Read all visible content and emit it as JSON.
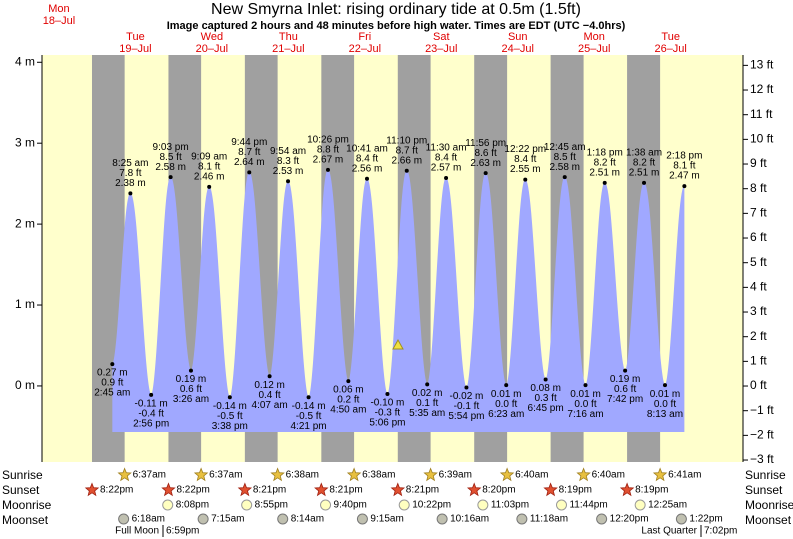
{
  "chart_data": {
    "type": "tide",
    "title": "New Smyrna Inlet: rising  ordinary tide at 0.5m (1.5ft)",
    "subtitle": "Image captured 2 hours and 48 minutes before high water. Times are EDT (UTC −4.0hrs)",
    "ylim": [
      -0.94,
      4.09
    ],
    "yticks": [
      {
        "value": 4,
        "label": "4 m"
      },
      {
        "value": 3,
        "label": "3 m"
      },
      {
        "value": 2,
        "label": "2 m"
      },
      {
        "value": 1,
        "label": "1 m"
      },
      {
        "value": 0,
        "label": "0 m"
      }
    ],
    "y2lim": [
      -3.08,
      13.42
    ],
    "y2ticks": [
      {
        "value": 13,
        "label": "13 ft"
      },
      {
        "value": 12,
        "label": "12 ft"
      },
      {
        "value": 11,
        "label": "11 ft"
      },
      {
        "value": 10,
        "label": "10 ft"
      },
      {
        "value": 9,
        "label": "9 ft"
      },
      {
        "value": 8,
        "label": "8 ft"
      },
      {
        "value": 7,
        "label": "7 ft"
      },
      {
        "value": 6,
        "label": "6 ft"
      },
      {
        "value": 5,
        "label": "5 ft"
      },
      {
        "value": 4,
        "label": "4 ft"
      },
      {
        "value": 3,
        "label": "3 ft"
      },
      {
        "value": 2,
        "label": "2 ft"
      },
      {
        "value": 1,
        "label": "1 ft"
      },
      {
        "value": 0,
        "label": "0 ft"
      },
      {
        "value": -1,
        "label": "−1 ft"
      },
      {
        "value": -2,
        "label": "−2 ft"
      },
      {
        "value": -3,
        "label": "−3 ft"
      }
    ],
    "color": "#a0a8ff",
    "row_labels": {
      "sunrise": "Sunrise",
      "sunset": "Sunset",
      "moonrise": "Moonrise",
      "moonset": "Moonset"
    },
    "moon_phases": [
      {
        "name": "Full Moon",
        "time": "6:59pm"
      },
      {
        "name": "Last Quarter",
        "time": "7:02pm"
      }
    ],
    "days": [
      {
        "name": "Mon",
        "date": "18–Jul",
        "sunrise": null,
        "sunset": "8:22pm",
        "moonrise": null,
        "moonset": null,
        "tides": []
      },
      {
        "name": "Tue",
        "date": "19–Jul",
        "sunrise": "6:37am",
        "sunset": "8:22pm",
        "moonrise": "8:08pm",
        "moonset": "6:18am",
        "tides": [
          {
            "time": "2:45 am",
            "m": 0.27,
            "m_label": "0.27 m",
            "ft": 0.9,
            "ft_label": "0.9 ft"
          },
          {
            "time": "8:25 am",
            "m": 2.38,
            "m_label": "2.38 m",
            "ft": 7.8,
            "ft_label": "7.8 ft"
          },
          {
            "time": "2:56 pm",
            "m": -0.11,
            "m_label": "-0.11 m",
            "ft": -0.4,
            "ft_label": "-0.4 ft"
          },
          {
            "time": "9:03 pm",
            "m": 2.58,
            "m_label": "2.58 m",
            "ft": 8.5,
            "ft_label": "8.5 ft"
          }
        ]
      },
      {
        "name": "Wed",
        "date": "20–Jul",
        "sunrise": "6:37am",
        "sunset": "8:21pm",
        "moonrise": "8:55pm",
        "moonset": "7:15am",
        "tides": [
          {
            "time": "3:26 am",
            "m": 0.19,
            "m_label": "0.19 m",
            "ft": 0.6,
            "ft_label": "0.6 ft"
          },
          {
            "time": "9:09 am",
            "m": 2.46,
            "m_label": "2.46 m",
            "ft": 8.1,
            "ft_label": "8.1 ft"
          },
          {
            "time": "3:38 pm",
            "m": -0.14,
            "m_label": "-0.14 m",
            "ft": -0.5,
            "ft_label": "-0.5 ft"
          },
          {
            "time": "9:44 pm",
            "m": 2.64,
            "m_label": "2.64 m",
            "ft": 8.7,
            "ft_label": "8.7 ft"
          }
        ]
      },
      {
        "name": "Thu",
        "date": "21–Jul",
        "sunrise": "6:38am",
        "sunset": "8:21pm",
        "moonrise": "9:40pm",
        "moonset": "8:14am",
        "tides": [
          {
            "time": "4:07 am",
            "m": 0.12,
            "m_label": "0.12 m",
            "ft": 0.4,
            "ft_label": "0.4 ft"
          },
          {
            "time": "9:54 am",
            "m": 2.53,
            "m_label": "2.53 m",
            "ft": 8.3,
            "ft_label": "8.3 ft"
          },
          {
            "time": "4:21 pm",
            "m": -0.14,
            "m_label": "-0.14 m",
            "ft": -0.5,
            "ft_label": "-0.5 ft"
          },
          {
            "time": "10:26 pm",
            "m": 2.67,
            "m_label": "2.67 m",
            "ft": 8.8,
            "ft_label": "8.8 ft"
          }
        ]
      },
      {
        "name": "Fri",
        "date": "22–Jul",
        "sunrise": "6:38am",
        "sunset": "8:21pm",
        "moonrise": "10:22pm",
        "moonset": "9:15am",
        "tides": [
          {
            "time": "4:50 am",
            "m": 0.06,
            "m_label": "0.06 m",
            "ft": 0.2,
            "ft_label": "0.2 ft"
          },
          {
            "time": "10:41 am",
            "m": 2.56,
            "m_label": "2.56 m",
            "ft": 8.4,
            "ft_label": "8.4 ft"
          },
          {
            "time": "5:06 pm",
            "m": -0.1,
            "m_label": "-0.10 m",
            "ft": -0.3,
            "ft_label": "-0.3 ft"
          },
          {
            "time": "11:10 pm",
            "m": 2.66,
            "m_label": "2.66 m",
            "ft": 8.7,
            "ft_label": "8.7 ft"
          }
        ]
      },
      {
        "name": "Sat",
        "date": "23–Jul",
        "sunrise": "6:39am",
        "sunset": "8:20pm",
        "moonrise": "11:03pm",
        "moonset": "10:16am",
        "tides": [
          {
            "time": "5:35 am",
            "m": 0.02,
            "m_label": "0.02 m",
            "ft": 0.1,
            "ft_label": "0.1 ft"
          },
          {
            "time": "11:30 am",
            "m": 2.57,
            "m_label": "2.57 m",
            "ft": 8.4,
            "ft_label": "8.4 ft"
          },
          {
            "time": "5:54 pm",
            "m": -0.02,
            "m_label": "-0.02 m",
            "ft": -0.1,
            "ft_label": "-0.1 ft"
          },
          {
            "time": "11:56 pm",
            "m": 2.63,
            "m_label": "2.63 m",
            "ft": 8.6,
            "ft_label": "8.6 ft"
          }
        ]
      },
      {
        "name": "Sun",
        "date": "24–Jul",
        "sunrise": "6:40am",
        "sunset": "8:19pm",
        "moonrise": "11:44pm",
        "moonset": "11:18am",
        "tides": [
          {
            "time": "6:23 am",
            "m": 0.01,
            "m_label": "0.01 m",
            "ft": 0,
            "ft_label": "0.0 ft"
          },
          {
            "time": "12:22 pm",
            "m": 2.55,
            "m_label": "2.55 m",
            "ft": 8.4,
            "ft_label": "8.4 ft"
          },
          {
            "time": "6:45 pm",
            "m": 0.08,
            "m_label": "0.08 m",
            "ft": 0.3,
            "ft_label": "0.3 ft"
          }
        ]
      },
      {
        "name": "Mon",
        "date": "25–Jul",
        "sunrise": "6:40am",
        "sunset": "8:19pm",
        "moonrise": null,
        "moonset": "12:20pm",
        "tides": [
          {
            "time": "12:45 am",
            "m": 2.58,
            "m_label": "2.58 m",
            "ft": 8.5,
            "ft_label": "8.5 ft"
          },
          {
            "time": "7:16 am",
            "m": 0.01,
            "m_label": "0.01 m",
            "ft": 0,
            "ft_label": "0.0 ft"
          },
          {
            "time": "1:18 pm",
            "m": 2.51,
            "m_label": "2.51 m",
            "ft": 8.2,
            "ft_label": "8.2 ft"
          },
          {
            "time": "7:42 pm",
            "m": 0.19,
            "m_label": "0.19 m",
            "ft": 0.6,
            "ft_label": "0.6 ft"
          }
        ]
      },
      {
        "name": "Tue",
        "date": "26–Jul",
        "sunrise": "6:41am",
        "sunset": null,
        "moonrise": "12:25am",
        "moonset": "1:22pm",
        "tides": [
          {
            "time": "1:38 am",
            "m": 2.51,
            "m_label": "2.51 m",
            "ft": 8.2,
            "ft_label": "8.2 ft"
          },
          {
            "time": "8:13 am",
            "m": 0.01,
            "m_label": "0.01 m",
            "ft": 0,
            "ft_label": "0.0 ft"
          },
          {
            "time": "2:18 pm",
            "m": 2.47,
            "m_label": "2.47 m",
            "ft": 8.1,
            "ft_label": "8.1 ft"
          }
        ]
      }
    ]
  }
}
